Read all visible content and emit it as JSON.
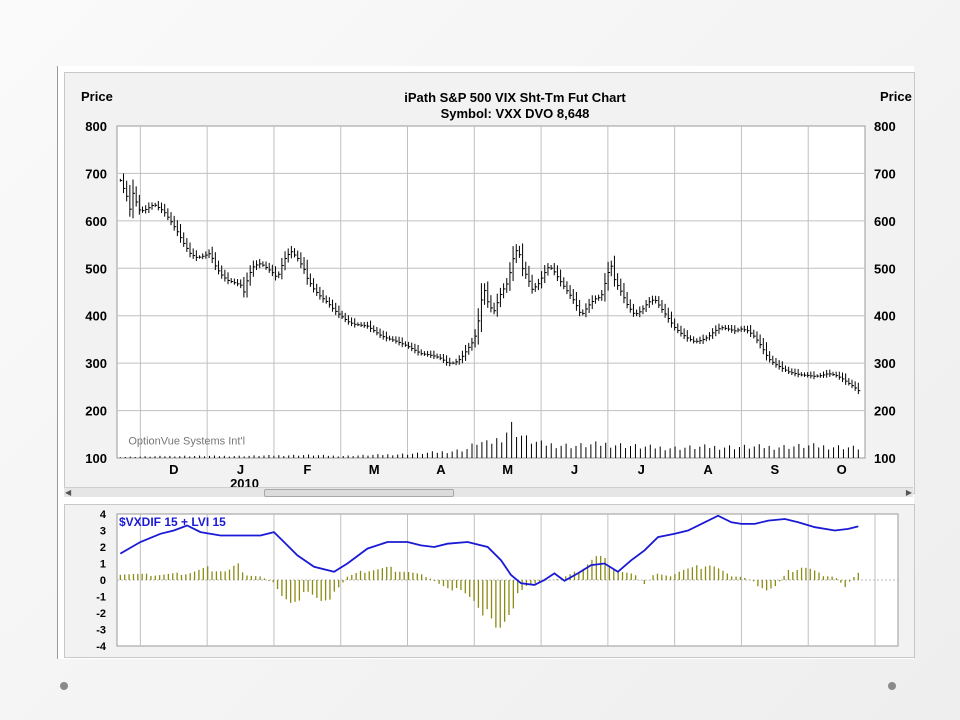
{
  "colors": {
    "price_bar": "#000000",
    "volume_bar": "#000000",
    "grid": "#c0c0c0",
    "indicator_line": "#1a1ad6",
    "indicator_bar": "#8b8b12"
  },
  "header": {
    "price_left": "Price",
    "price_right": "Price",
    "title_line1": "iPath S&P 500 VIX Sht-Tm Fut Chart",
    "title_line2": "Symbol: VXX  DVO 8,648"
  },
  "watermark": "OptionVue Systems Int'l",
  "year_label": "2010",
  "icons": {
    "scroll_left": "arrow-left-icon",
    "scroll_right": "arrow-right-icon"
  },
  "chart_data": [
    {
      "type": "bar",
      "title": "iPath S&P 500 VIX Sht-Tm Fut Chart",
      "subtitle": "Symbol: VXX  DVO 8,648",
      "ylabel": "Price",
      "ylim": [
        100,
        800
      ],
      "yticks": [
        "800",
        "700",
        "600",
        "500",
        "400",
        "300",
        "200",
        "100"
      ],
      "months": [
        {
          "label": "D",
          "t": 0.5
        },
        {
          "label": "J",
          "t": 1.5
        },
        {
          "label": "F",
          "t": 2.5
        },
        {
          "label": "M",
          "t": 3.5
        },
        {
          "label": "A",
          "t": 4.5
        },
        {
          "label": "M",
          "t": 5.5
        },
        {
          "label": "J",
          "t": 6.5
        },
        {
          "label": "J",
          "t": 7.5
        },
        {
          "label": "A",
          "t": 8.5
        },
        {
          "label": "S",
          "t": 9.5
        },
        {
          "label": "O",
          "t": 10.5
        }
      ],
      "month_boundaries": [
        0,
        1,
        2,
        3,
        4,
        5,
        6,
        7,
        8,
        9,
        10,
        11
      ],
      "x_range": [
        -0.35,
        10.85
      ],
      "price_points": [
        [
          -0.3,
          685
        ],
        [
          -0.2,
          650
        ],
        [
          -0.15,
          620
        ],
        [
          -0.1,
          668
        ],
        [
          -0.05,
          630
        ],
        [
          0.0,
          620
        ],
        [
          0.1,
          625
        ],
        [
          0.2,
          635
        ],
        [
          0.35,
          620
        ],
        [
          0.45,
          600
        ],
        [
          0.55,
          578
        ],
        [
          0.65,
          552
        ],
        [
          0.75,
          530
        ],
        [
          0.85,
          522
        ],
        [
          0.95,
          526
        ],
        [
          1.05,
          532
        ],
        [
          1.1,
          510
        ],
        [
          1.2,
          488
        ],
        [
          1.3,
          475
        ],
        [
          1.4,
          470
        ],
        [
          1.5,
          465
        ],
        [
          1.55,
          450
        ],
        [
          1.62,
          485
        ],
        [
          1.7,
          505
        ],
        [
          1.8,
          510
        ],
        [
          1.9,
          500
        ],
        [
          2.0,
          488
        ],
        [
          2.05,
          478
        ],
        [
          2.1,
          500
        ],
        [
          2.18,
          525
        ],
        [
          2.26,
          535
        ],
        [
          2.35,
          522
        ],
        [
          2.45,
          498
        ],
        [
          2.5,
          478
        ],
        [
          2.6,
          455
        ],
        [
          2.7,
          440
        ],
        [
          2.8,
          428
        ],
        [
          2.9,
          412
        ],
        [
          3.0,
          400
        ],
        [
          3.1,
          388
        ],
        [
          3.2,
          382
        ],
        [
          3.3,
          380
        ],
        [
          3.4,
          378
        ],
        [
          3.5,
          368
        ],
        [
          3.6,
          358
        ],
        [
          3.7,
          352
        ],
        [
          3.8,
          348
        ],
        [
          3.9,
          342
        ],
        [
          4.0,
          336
        ],
        [
          4.1,
          328
        ],
        [
          4.2,
          320
        ],
        [
          4.3,
          318
        ],
        [
          4.4,
          315
        ],
        [
          4.5,
          310
        ],
        [
          4.6,
          300
        ],
        [
          4.7,
          300
        ],
        [
          4.8,
          310
        ],
        [
          4.9,
          330
        ],
        [
          5.0,
          350
        ],
        [
          5.05,
          380
        ],
        [
          5.1,
          430
        ],
        [
          5.15,
          455
        ],
        [
          5.22,
          420
        ],
        [
          5.3,
          410
        ],
        [
          5.35,
          430
        ],
        [
          5.4,
          448
        ],
        [
          5.5,
          470
        ],
        [
          5.58,
          520
        ],
        [
          5.65,
          545
        ],
        [
          5.72,
          500
        ],
        [
          5.8,
          480
        ],
        [
          5.86,
          455
        ],
        [
          5.95,
          465
        ],
        [
          6.05,
          490
        ],
        [
          6.12,
          505
        ],
        [
          6.2,
          492
        ],
        [
          6.3,
          470
        ],
        [
          6.4,
          450
        ],
        [
          6.5,
          430
        ],
        [
          6.6,
          400
        ],
        [
          6.7,
          420
        ],
        [
          6.8,
          435
        ],
        [
          6.9,
          440
        ],
        [
          7.0,
          490
        ],
        [
          7.05,
          505
        ],
        [
          7.1,
          475
        ],
        [
          7.2,
          450
        ],
        [
          7.3,
          420
        ],
        [
          7.4,
          402
        ],
        [
          7.5,
          410
        ],
        [
          7.6,
          428
        ],
        [
          7.7,
          435
        ],
        [
          7.8,
          415
        ],
        [
          7.9,
          395
        ],
        [
          8.0,
          375
        ],
        [
          8.1,
          362
        ],
        [
          8.2,
          352
        ],
        [
          8.3,
          345
        ],
        [
          8.4,
          348
        ],
        [
          8.5,
          355
        ],
        [
          8.6,
          368
        ],
        [
          8.7,
          375
        ],
        [
          8.8,
          372
        ],
        [
          8.9,
          368
        ],
        [
          9.0,
          372
        ],
        [
          9.1,
          368
        ],
        [
          9.2,
          355
        ],
        [
          9.3,
          335
        ],
        [
          9.4,
          310
        ],
        [
          9.5,
          298
        ],
        [
          9.6,
          290
        ],
        [
          9.7,
          282
        ],
        [
          9.8,
          278
        ],
        [
          9.9,
          275
        ],
        [
          10.0,
          274
        ],
        [
          10.1,
          272
        ],
        [
          10.2,
          274
        ],
        [
          10.3,
          278
        ],
        [
          10.4,
          275
        ],
        [
          10.5,
          268
        ],
        [
          10.6,
          258
        ],
        [
          10.7,
          248
        ],
        [
          10.75,
          242
        ]
      ],
      "volume_points": [
        [
          -0.3,
          1
        ],
        [
          0.5,
          2
        ],
        [
          1.5,
          2
        ],
        [
          2.0,
          2.5
        ],
        [
          2.5,
          3
        ],
        [
          3.0,
          2
        ],
        [
          3.5,
          3
        ],
        [
          4.0,
          4
        ],
        [
          4.3,
          5
        ],
        [
          4.5,
          6
        ],
        [
          4.7,
          7
        ],
        [
          4.9,
          9
        ],
        [
          5.05,
          16
        ],
        [
          5.2,
          14
        ],
        [
          5.4,
          20
        ],
        [
          5.55,
          32
        ],
        [
          5.65,
          25
        ],
        [
          5.8,
          18
        ],
        [
          6.0,
          14
        ],
        [
          6.5,
          12
        ],
        [
          7.0,
          14
        ],
        [
          7.5,
          11
        ],
        [
          8.0,
          10
        ],
        [
          8.5,
          11
        ],
        [
          9.0,
          11
        ],
        [
          9.5,
          11
        ],
        [
          10.0,
          12
        ],
        [
          10.5,
          11
        ],
        [
          10.75,
          10
        ]
      ]
    },
    {
      "type": "line",
      "title": "$VXDIF 15 + LVI 15",
      "ylim": [
        -4,
        4
      ],
      "yticks": [
        "4",
        "3",
        "2",
        "1",
        "0",
        "-1",
        "-2",
        "-3",
        "-4"
      ],
      "line_points": [
        [
          -0.3,
          1.6
        ],
        [
          0.0,
          2.3
        ],
        [
          0.3,
          2.8
        ],
        [
          0.5,
          3.0
        ],
        [
          0.7,
          3.3
        ],
        [
          0.9,
          2.9
        ],
        [
          1.2,
          2.7
        ],
        [
          1.5,
          2.7
        ],
        [
          1.8,
          2.7
        ],
        [
          2.0,
          2.9
        ],
        [
          2.15,
          2.3
        ],
        [
          2.35,
          1.5
        ],
        [
          2.6,
          0.8
        ],
        [
          2.9,
          0.5
        ],
        [
          3.1,
          1.0
        ],
        [
          3.4,
          1.9
        ],
        [
          3.7,
          2.3
        ],
        [
          4.0,
          2.3
        ],
        [
          4.2,
          2.1
        ],
        [
          4.4,
          2.0
        ],
        [
          4.6,
          2.2
        ],
        [
          4.9,
          2.3
        ],
        [
          5.2,
          2.0
        ],
        [
          5.4,
          1.2
        ],
        [
          5.55,
          0.3
        ],
        [
          5.7,
          -0.2
        ],
        [
          5.9,
          -0.3
        ],
        [
          6.05,
          0.0
        ],
        [
          6.2,
          0.4
        ],
        [
          6.35,
          -0.05
        ],
        [
          6.55,
          0.4
        ],
        [
          6.75,
          0.9
        ],
        [
          6.95,
          1.0
        ],
        [
          7.15,
          0.5
        ],
        [
          7.35,
          1.2
        ],
        [
          7.55,
          1.8
        ],
        [
          7.75,
          2.6
        ],
        [
          8.0,
          2.8
        ],
        [
          8.2,
          3.0
        ],
        [
          8.45,
          3.5
        ],
        [
          8.65,
          3.9
        ],
        [
          8.85,
          3.5
        ],
        [
          9.0,
          3.4
        ],
        [
          9.2,
          3.4
        ],
        [
          9.4,
          3.6
        ],
        [
          9.65,
          3.7
        ],
        [
          9.85,
          3.5
        ],
        [
          10.1,
          3.2
        ],
        [
          10.4,
          3.0
        ],
        [
          10.6,
          3.1
        ],
        [
          10.75,
          3.25
        ]
      ],
      "bar_points": [
        [
          -0.3,
          0.4
        ],
        [
          0.2,
          0.3
        ],
        [
          0.7,
          0.4
        ],
        [
          1.0,
          0.7
        ],
        [
          1.3,
          0.5
        ],
        [
          1.45,
          0.9
        ],
        [
          1.6,
          0.3
        ],
        [
          1.8,
          0.2
        ],
        [
          2.0,
          -0.2
        ],
        [
          2.1,
          -1.0
        ],
        [
          2.25,
          -1.3
        ],
        [
          2.5,
          -0.8
        ],
        [
          2.7,
          -1.2
        ],
        [
          2.9,
          -0.9
        ],
        [
          3.1,
          0.2
        ],
        [
          3.4,
          0.6
        ],
        [
          3.7,
          0.7
        ],
        [
          4.0,
          0.5
        ],
        [
          4.3,
          0.2
        ],
        [
          4.5,
          -0.3
        ],
        [
          4.8,
          -0.7
        ],
        [
          5.0,
          -1.2
        ],
        [
          5.15,
          -1.9
        ],
        [
          5.3,
          -3.0
        ],
        [
          5.35,
          -3.2
        ],
        [
          5.5,
          -2.0
        ],
        [
          5.65,
          -1.0
        ],
        [
          5.8,
          -0.3
        ],
        [
          6.0,
          -0.1
        ],
        [
          6.3,
          0.1
        ],
        [
          6.55,
          0.5
        ],
        [
          6.75,
          1.2
        ],
        [
          6.85,
          1.4
        ],
        [
          7.0,
          1.0
        ],
        [
          7.2,
          0.5
        ],
        [
          7.4,
          0.3
        ],
        [
          7.55,
          -0.3
        ],
        [
          7.7,
          0.4
        ],
        [
          7.9,
          0.2
        ],
        [
          8.1,
          0.6
        ],
        [
          8.3,
          0.7
        ],
        [
          8.5,
          1.0
        ],
        [
          8.6,
          0.8
        ],
        [
          8.8,
          0.3
        ],
        [
          9.0,
          0.2
        ],
        [
          9.2,
          -0.1
        ],
        [
          9.35,
          -0.8
        ],
        [
          9.5,
          -0.4
        ],
        [
          9.7,
          0.5
        ],
        [
          9.9,
          0.8
        ],
        [
          10.0,
          0.7
        ],
        [
          10.2,
          0.3
        ],
        [
          10.4,
          0.2
        ],
        [
          10.55,
          -0.4
        ],
        [
          10.7,
          0.3
        ],
        [
          10.75,
          0.5
        ]
      ]
    }
  ]
}
